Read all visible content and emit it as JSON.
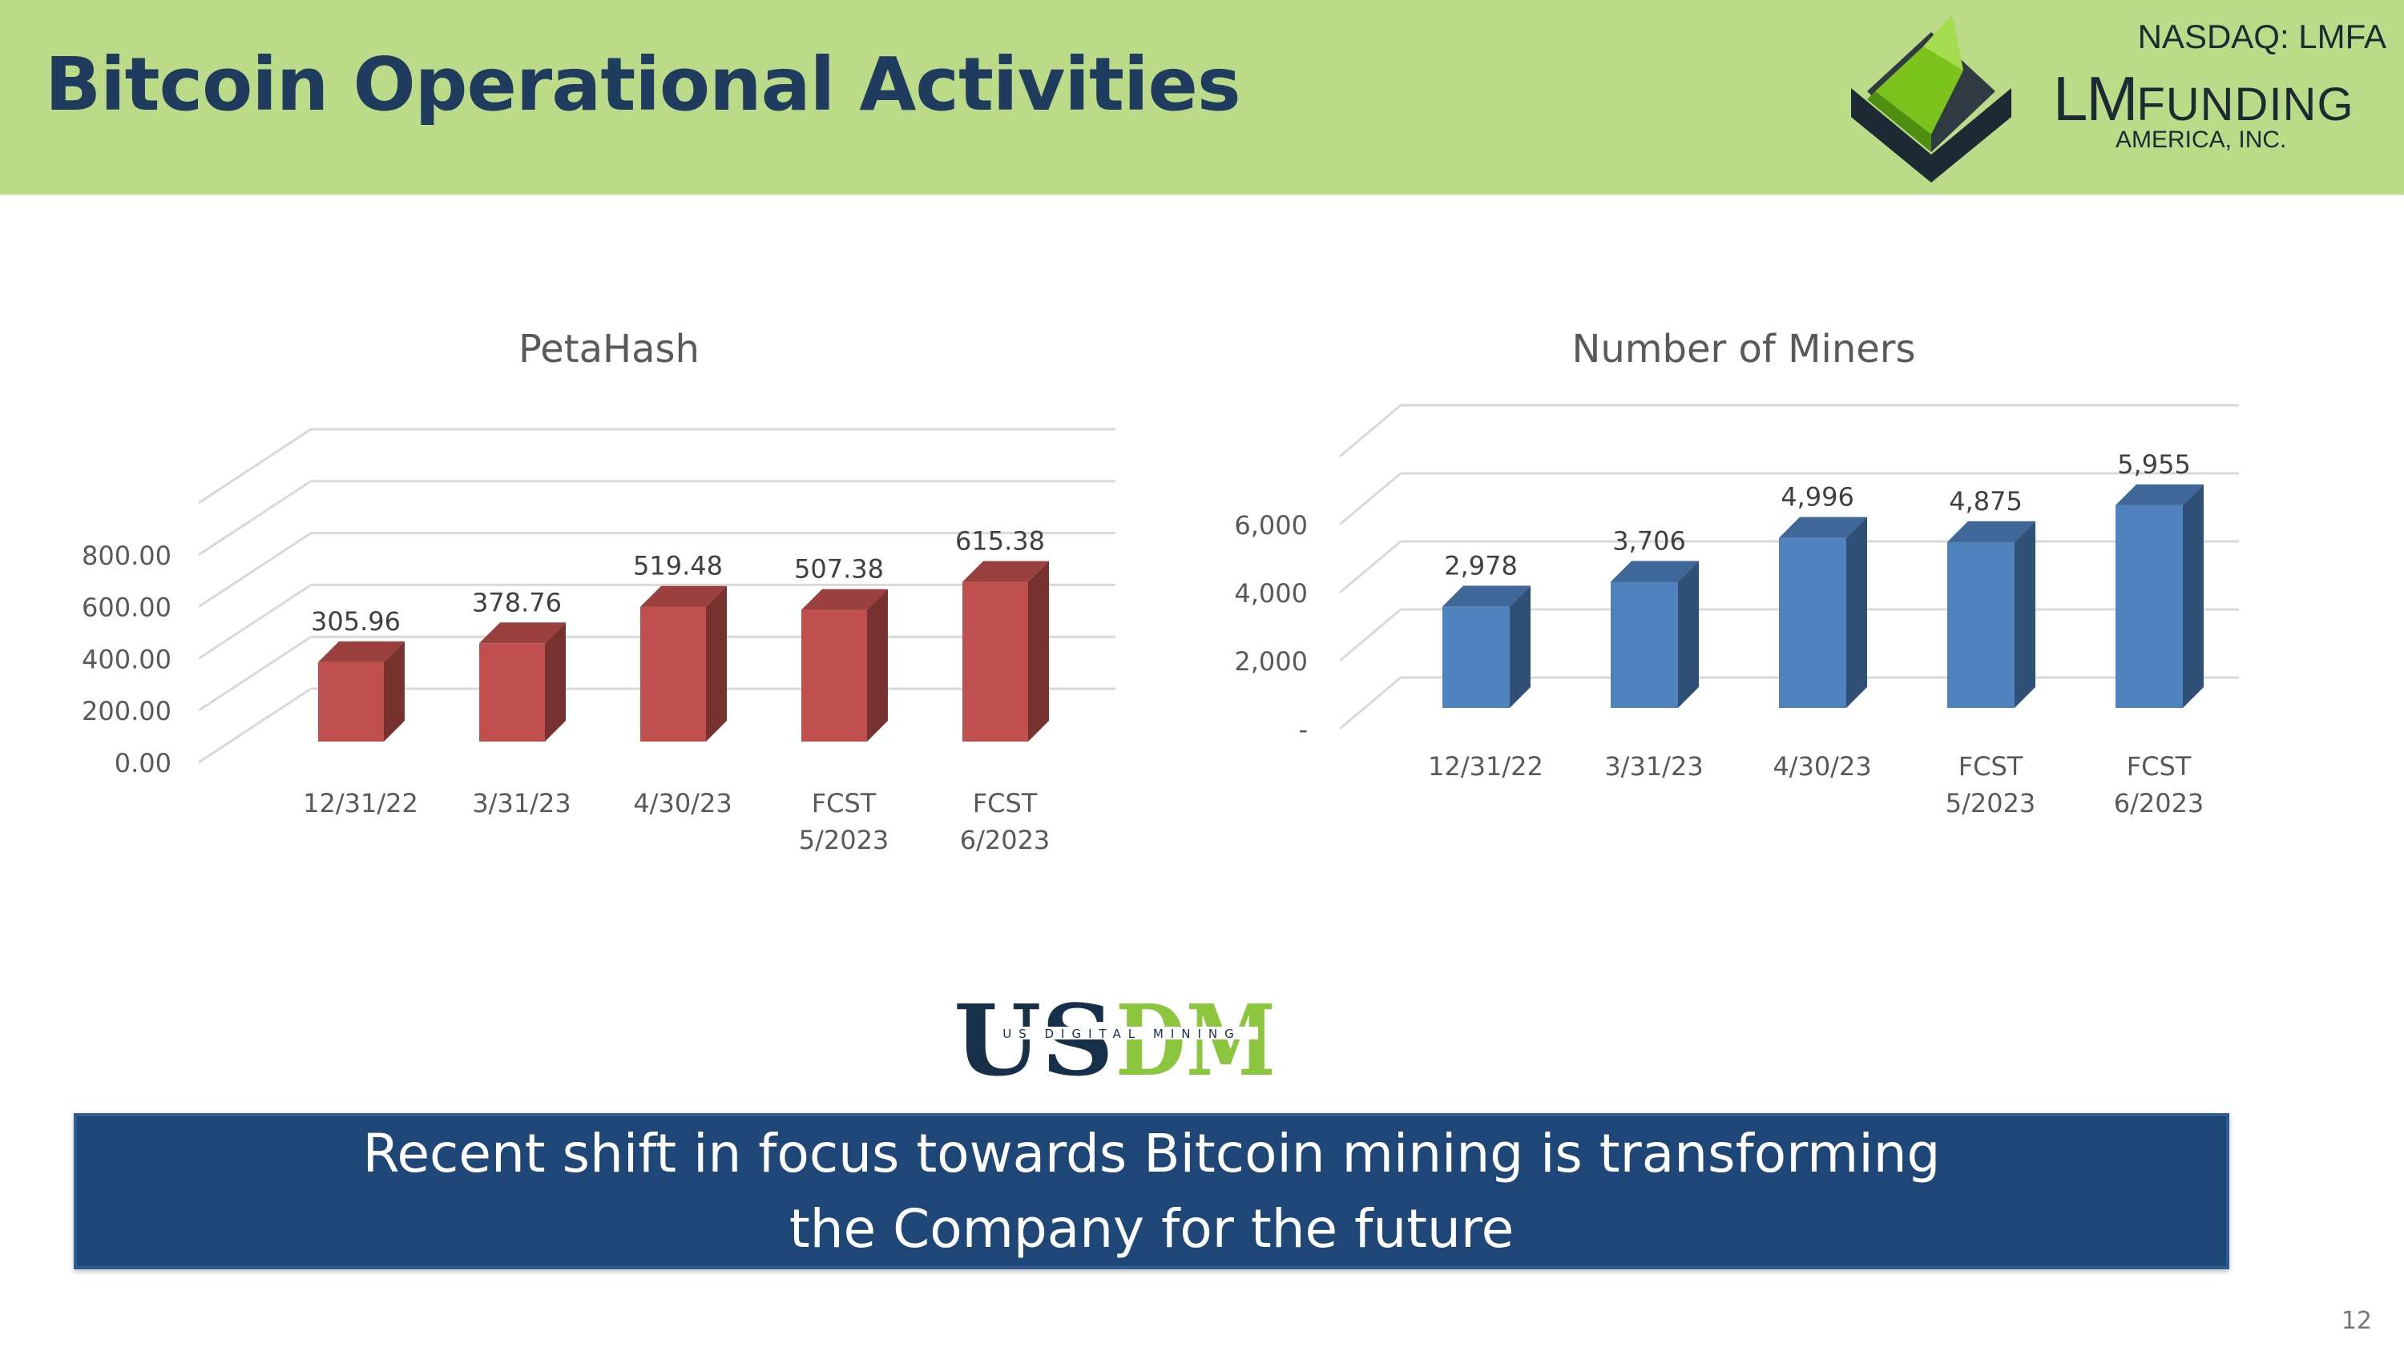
{
  "header": {
    "title": "Bitcoin Operational Activities",
    "ticker": "NASDAQ: LMFA",
    "logo": {
      "lm": "LM",
      "funding": "FUNDING",
      "subtitle": "AMERICA, INC.",
      "colors": {
        "green": "#7cc21c",
        "dark": "#1e2a33"
      }
    }
  },
  "chart_data": [
    {
      "type": "bar",
      "title": "PetaHash",
      "categories": [
        "12/31/22",
        "3/31/23",
        "4/30/23",
        "FCST\n5/2023",
        "FCST\n6/2023"
      ],
      "values": [
        305.96,
        378.76,
        519.48,
        507.38,
        615.38
      ],
      "value_labels": [
        "305.96",
        "378.76",
        "519.48",
        "507.38",
        "615.38"
      ],
      "yticks": [
        0,
        200,
        400,
        600,
        800
      ],
      "ytick_labels": [
        "0.00",
        "200.00",
        "400.00",
        "600.00",
        "800.00"
      ],
      "ylim": [
        0,
        1000
      ],
      "xlabel": "",
      "ylabel": "",
      "grid": true,
      "style": "3d",
      "color": "#c0504d"
    },
    {
      "type": "bar",
      "title": "Number of Miners",
      "categories": [
        "12/31/22",
        "3/31/23",
        "4/30/23",
        "FCST\n5/2023",
        "FCST\n6/2023"
      ],
      "values": [
        2978,
        3706,
        4996,
        4875,
        5955
      ],
      "value_labels": [
        "2,978",
        "3,706",
        "4,996",
        "4,875",
        "5,955"
      ],
      "yticks": [
        0,
        2000,
        4000,
        6000
      ],
      "ytick_labels": [
        "-",
        "2,000",
        "4,000",
        "6,000"
      ],
      "ylim": [
        0,
        8000
      ],
      "xlabel": "",
      "ylabel": "",
      "grid": true,
      "style": "3d",
      "color": "#4f81bd"
    }
  ],
  "usdm": {
    "big": "USDM",
    "small": "US DIGITAL MINING",
    "colors": {
      "us": "#163049",
      "dm": "#8cc63f"
    }
  },
  "banner": {
    "line1": "Recent shift in focus towards Bitcoin mining is transforming",
    "line2": "the Company for the future"
  },
  "page_number": "12"
}
